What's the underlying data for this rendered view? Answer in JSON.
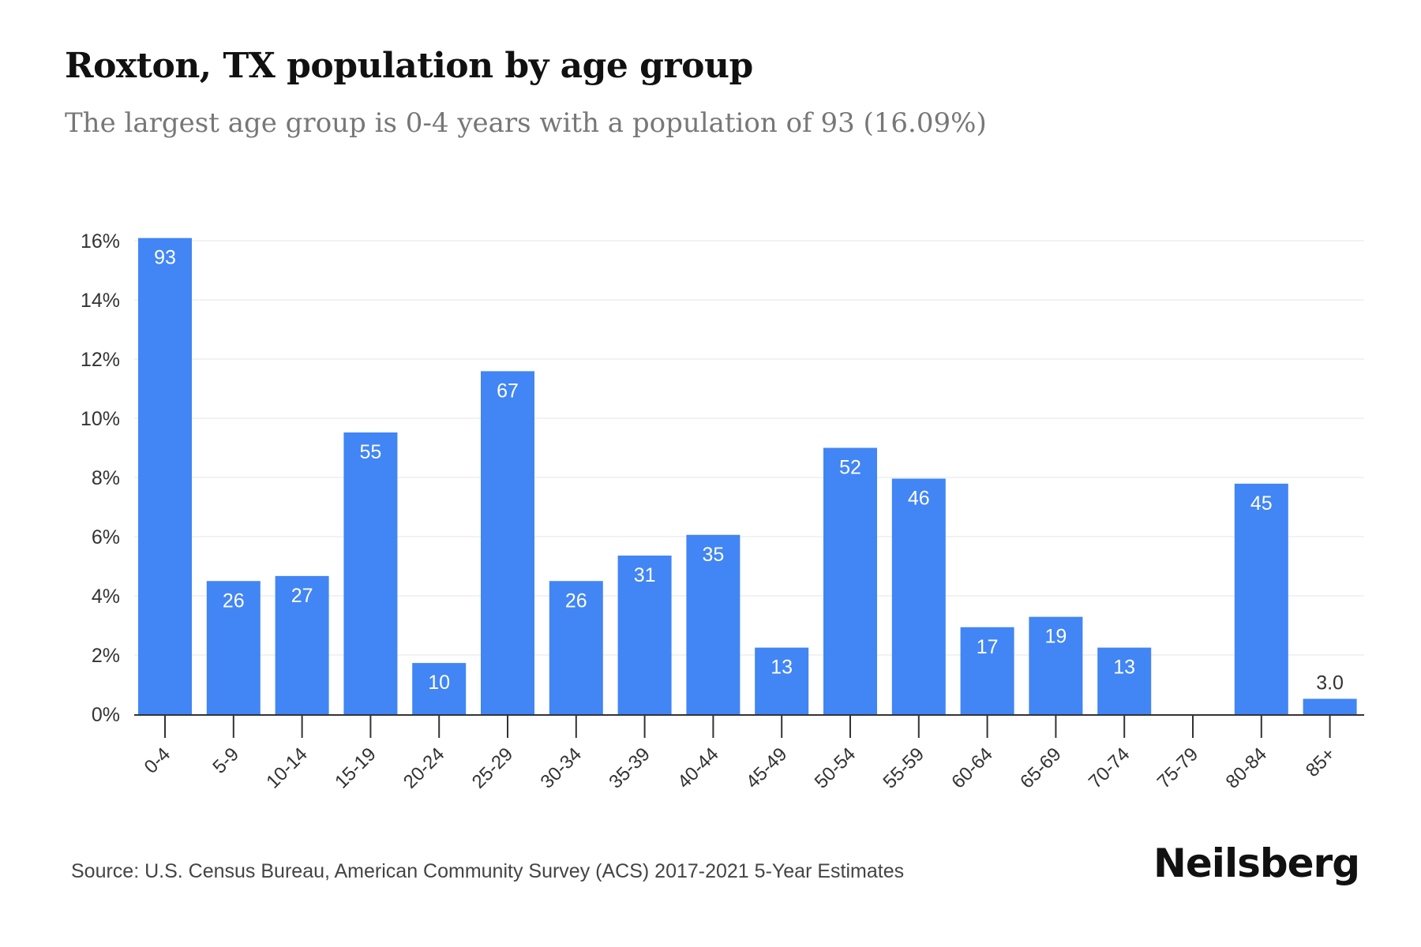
{
  "title": "Roxton, TX population by age group",
  "subtitle": "The largest age group is 0-4 years with a population of 93 (16.09%)",
  "source": "Source: U.S. Census Bureau, American Community Survey (ACS) 2017-2021 5-Year Estimates",
  "brand": "Neilsberg",
  "colors": {
    "bar": "#4285f4",
    "grid": "#eeeeee",
    "axis": "#333333",
    "label_inside": "#ffffff",
    "label_outside": "#333333"
  },
  "chart_data": {
    "type": "bar",
    "categories": [
      "0-4",
      "5-9",
      "10-14",
      "15-19",
      "20-24",
      "25-29",
      "30-34",
      "35-39",
      "40-44",
      "45-49",
      "50-54",
      "55-59",
      "60-64",
      "65-69",
      "70-74",
      "75-79",
      "80-84",
      "85+"
    ],
    "values": [
      16.09,
      4.5,
      4.67,
      9.52,
      1.73,
      11.59,
      4.5,
      5.36,
      6.06,
      2.25,
      9.0,
      7.96,
      2.94,
      3.29,
      2.25,
      0,
      7.79,
      0.52
    ],
    "data_labels": [
      "93",
      "26",
      "27",
      "55",
      "10",
      "67",
      "26",
      "31",
      "35",
      "13",
      "52",
      "46",
      "17",
      "19",
      "13",
      "",
      "45",
      "3.0"
    ],
    "y_ticks": [
      "0%",
      "2%",
      "4%",
      "6%",
      "8%",
      "10%",
      "12%",
      "14%",
      "16%"
    ],
    "ylim": [
      0,
      16
    ],
    "xlabel": "",
    "ylabel": "",
    "grid": true,
    "legend": "none"
  }
}
